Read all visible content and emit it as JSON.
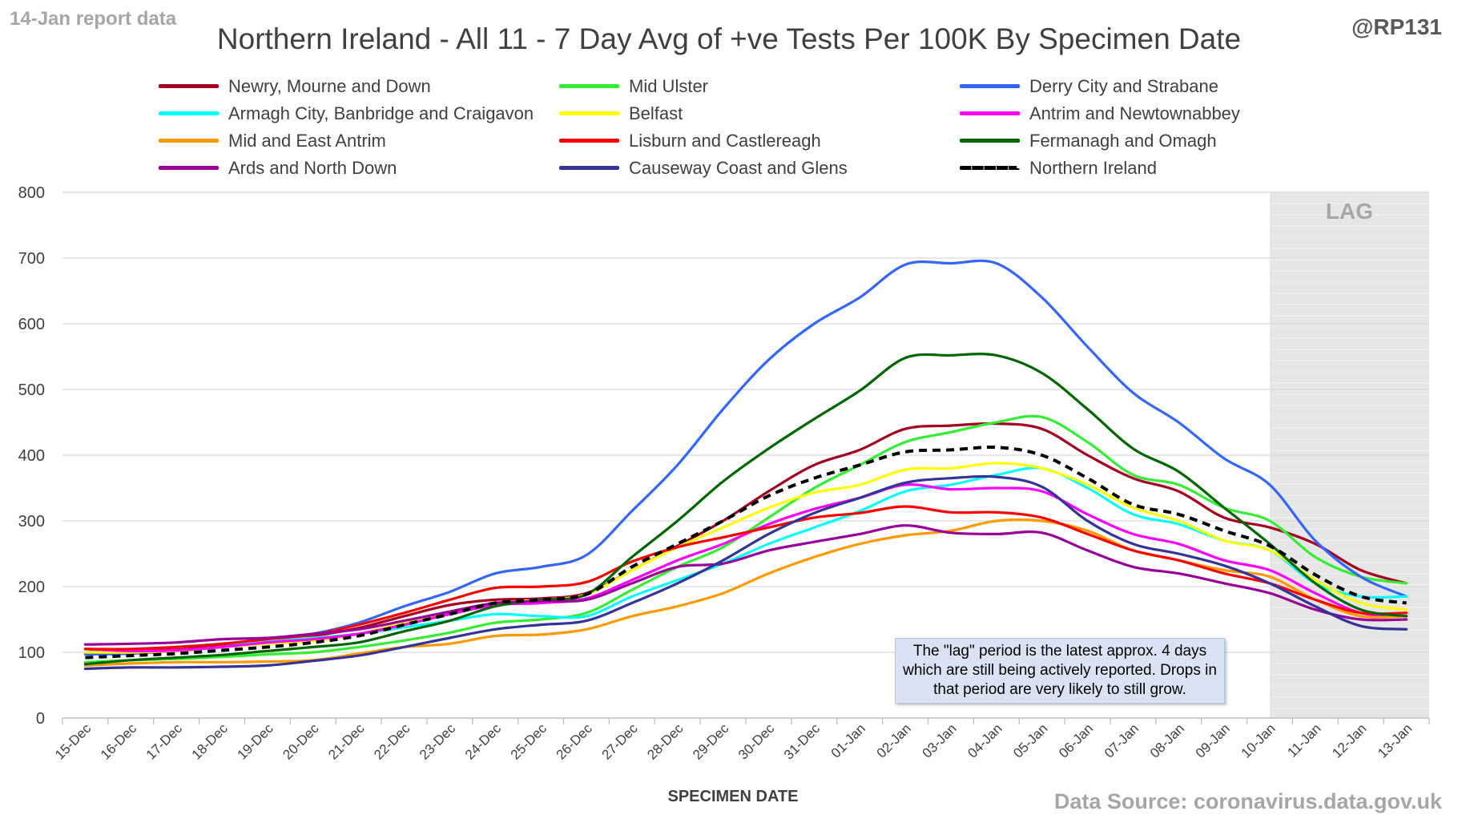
{
  "header": {
    "report_label": "14-Jan report data",
    "handle": "@RP131",
    "source": "Data Source: coronavirus.data.gov.uk",
    "note": "The \"lag\" period is the latest approx. 4 days which are still being actively reported. Drops in that period are very likely to still grow."
  },
  "chart_data": {
    "type": "line",
    "title": "Northern Ireland - All 11 - 7 Day Avg of +ve Tests Per 100K By Specimen Date",
    "xlabel": "SPECIMEN DATE",
    "ylabel": "",
    "ylim": [
      0,
      800
    ],
    "yticks": [
      0,
      100,
      200,
      300,
      400,
      500,
      600,
      700,
      800
    ],
    "grid": true,
    "legend_position": "top",
    "lag_label": "LAG",
    "lag_start": "10-Jan",
    "categories": [
      "15-Dec",
      "16-Dec",
      "17-Dec",
      "18-Dec",
      "19-Dec",
      "20-Dec",
      "21-Dec",
      "22-Dec",
      "23-Dec",
      "24-Dec",
      "25-Dec",
      "26-Dec",
      "27-Dec",
      "28-Dec",
      "29-Dec",
      "30-Dec",
      "31-Dec",
      "01-Jan",
      "02-Jan",
      "03-Jan",
      "04-Jan",
      "05-Jan",
      "06-Jan",
      "07-Jan",
      "08-Jan",
      "09-Jan",
      "10-Jan",
      "11-Jan",
      "12-Jan",
      "13-Jan"
    ],
    "series": [
      {
        "name": "Newry, Mourne and Down",
        "color": "#a50021",
        "dashed": false,
        "values": [
          105,
          104,
          104,
          110,
          118,
          125,
          137,
          155,
          172,
          180,
          182,
          190,
          225,
          262,
          300,
          345,
          385,
          408,
          440,
          445,
          448,
          440,
          400,
          365,
          345,
          305,
          290,
          265,
          225,
          205
        ]
      },
      {
        "name": "Mid Ulster",
        "color": "#33ee33",
        "dashed": false,
        "values": [
          85,
          88,
          90,
          93,
          97,
          100,
          108,
          118,
          130,
          145,
          150,
          160,
          195,
          230,
          260,
          305,
          350,
          385,
          420,
          435,
          450,
          458,
          420,
          370,
          355,
          320,
          300,
          245,
          215,
          205
        ]
      },
      {
        "name": "Derry City and Strabane",
        "color": "#3366ff",
        "dashed": false,
        "values": [
          97,
          98,
          102,
          108,
          118,
          128,
          145,
          170,
          192,
          220,
          230,
          248,
          315,
          385,
          470,
          545,
          600,
          640,
          690,
          692,
          692,
          640,
          565,
          495,
          450,
          395,
          355,
          270,
          215,
          185
        ]
      },
      {
        "name": "Armagh City, Banbridge and Craigavon",
        "color": "#00ffff",
        "dashed": false,
        "values": [
          100,
          105,
          108,
          113,
          118,
          122,
          128,
          138,
          148,
          158,
          155,
          155,
          185,
          210,
          235,
          265,
          290,
          315,
          345,
          355,
          370,
          380,
          350,
          310,
          295,
          270,
          255,
          205,
          185,
          185
        ]
      },
      {
        "name": "Belfast",
        "color": "#ffff00",
        "dashed": false,
        "values": [
          100,
          100,
          102,
          108,
          113,
          117,
          128,
          145,
          160,
          175,
          180,
          188,
          225,
          260,
          290,
          320,
          343,
          355,
          378,
          380,
          388,
          380,
          355,
          320,
          300,
          270,
          255,
          210,
          175,
          165
        ]
      },
      {
        "name": "Antrim and Newtownabbey",
        "color": "#ff00ff",
        "dashed": false,
        "values": [
          105,
          102,
          103,
          108,
          115,
          120,
          128,
          142,
          158,
          172,
          175,
          182,
          210,
          240,
          265,
          295,
          318,
          335,
          355,
          348,
          350,
          345,
          310,
          280,
          265,
          240,
          225,
          190,
          160,
          155
        ]
      },
      {
        "name": "Mid and East Antrim",
        "color": "#ff9900",
        "dashed": false,
        "values": [
          80,
          83,
          85,
          85,
          86,
          88,
          98,
          108,
          113,
          125,
          127,
          135,
          155,
          170,
          190,
          220,
          245,
          265,
          278,
          285,
          300,
          300,
          285,
          255,
          240,
          225,
          215,
          180,
          155,
          155
        ]
      },
      {
        "name": "Lisburn and Castlereagh",
        "color": "#ff0000",
        "dashed": false,
        "values": [
          105,
          105,
          108,
          113,
          120,
          127,
          142,
          160,
          180,
          198,
          200,
          207,
          238,
          260,
          275,
          290,
          305,
          312,
          322,
          313,
          313,
          305,
          280,
          255,
          240,
          220,
          205,
          180,
          160,
          160
        ]
      },
      {
        "name": "Fermanagh and Omagh",
        "color": "#006600",
        "dashed": false,
        "values": [
          82,
          88,
          92,
          96,
          102,
          108,
          115,
          132,
          148,
          170,
          180,
          188,
          245,
          300,
          360,
          410,
          455,
          498,
          548,
          552,
          552,
          525,
          470,
          410,
          375,
          320,
          265,
          205,
          165,
          155
        ]
      },
      {
        "name": "Ards and North Down",
        "color": "#990099",
        "dashed": false,
        "values": [
          112,
          113,
          115,
          120,
          122,
          128,
          135,
          148,
          162,
          175,
          178,
          180,
          205,
          230,
          235,
          255,
          268,
          280,
          293,
          282,
          280,
          282,
          255,
          230,
          220,
          205,
          190,
          165,
          150,
          150
        ]
      },
      {
        "name": "Causeway Coast and Glens",
        "color": "#333399",
        "dashed": false,
        "values": [
          75,
          77,
          77,
          78,
          80,
          87,
          95,
          108,
          122,
          135,
          142,
          148,
          175,
          205,
          240,
          280,
          312,
          335,
          358,
          365,
          367,
          352,
          300,
          265,
          250,
          232,
          205,
          170,
          140,
          135
        ]
      },
      {
        "name": "Northern Ireland",
        "color": "#000000",
        "dashed": true,
        "values": [
          92,
          95,
          98,
          103,
          108,
          115,
          125,
          142,
          158,
          175,
          180,
          188,
          230,
          265,
          300,
          338,
          365,
          385,
          405,
          408,
          412,
          400,
          365,
          325,
          310,
          285,
          262,
          218,
          185,
          175
        ]
      }
    ]
  }
}
